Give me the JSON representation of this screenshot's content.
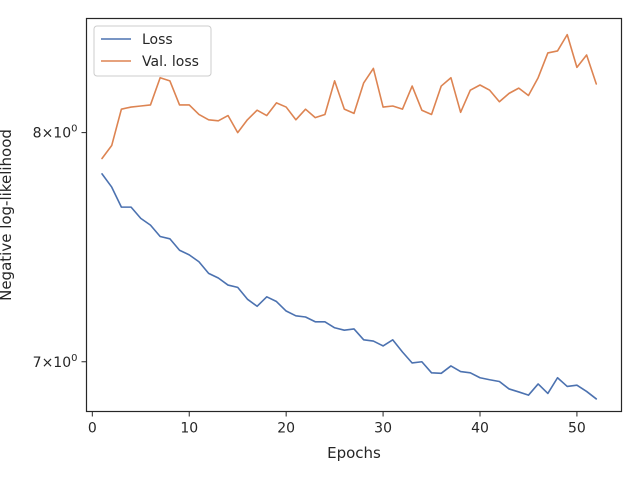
{
  "chart_data": {
    "type": "line",
    "title": "",
    "xlabel": "Epochs",
    "ylabel": "Negative log-likelihood",
    "y_scale": "log",
    "xlim": [
      -0.6,
      54.6
    ],
    "ylim": [
      6.8,
      8.55
    ],
    "x_ticks": [
      0,
      10,
      20,
      30,
      40,
      50
    ],
    "y_ticks": [
      {
        "value": 7,
        "label_base": "7",
        "label_mid": "×10",
        "label_exp": "0"
      },
      {
        "value": 8,
        "label_base": "8",
        "label_mid": "×10",
        "label_exp": "0"
      }
    ],
    "grid": false,
    "legend_position": "top-left",
    "x": [
      1,
      2,
      3,
      4,
      5,
      6,
      7,
      8,
      9,
      10,
      11,
      12,
      13,
      14,
      15,
      16,
      17,
      18,
      19,
      20,
      21,
      22,
      23,
      24,
      25,
      26,
      27,
      28,
      29,
      30,
      31,
      32,
      33,
      34,
      35,
      36,
      37,
      38,
      39,
      40,
      41,
      42,
      43,
      44,
      45,
      46,
      47,
      48,
      49,
      50,
      51,
      52
    ],
    "series": [
      {
        "name": "Loss",
        "color": "#4c72b0",
        "values": [
          7.81,
          7.75,
          7.66,
          7.66,
          7.61,
          7.58,
          7.53,
          7.52,
          7.47,
          7.45,
          7.42,
          7.37,
          7.35,
          7.32,
          7.31,
          7.26,
          7.23,
          7.27,
          7.25,
          7.21,
          7.19,
          7.185,
          7.165,
          7.165,
          7.14,
          7.13,
          7.135,
          7.09,
          7.085,
          7.065,
          7.09,
          7.04,
          6.995,
          7.0,
          6.955,
          6.953,
          6.983,
          6.96,
          6.955,
          6.935,
          6.927,
          6.92,
          6.89,
          6.878,
          6.865,
          6.91,
          6.872,
          6.935,
          6.9,
          6.905,
          6.88,
          6.85
        ]
      },
      {
        "name": "Val. loss",
        "color": "#dd8452",
        "values": [
          7.88,
          7.94,
          8.11,
          8.12,
          8.125,
          8.13,
          8.26,
          8.245,
          8.13,
          8.13,
          8.085,
          8.06,
          8.055,
          8.08,
          8.0,
          8.06,
          8.105,
          8.08,
          8.14,
          8.12,
          8.06,
          8.11,
          8.07,
          8.085,
          8.245,
          8.11,
          8.09,
          8.235,
          8.305,
          8.12,
          8.125,
          8.11,
          8.22,
          8.105,
          8.085,
          8.22,
          8.26,
          8.095,
          8.2,
          8.225,
          8.2,
          8.145,
          8.185,
          8.21,
          8.175,
          8.26,
          8.38,
          8.39,
          8.47,
          8.31,
          8.37,
          8.23
        ]
      }
    ]
  }
}
